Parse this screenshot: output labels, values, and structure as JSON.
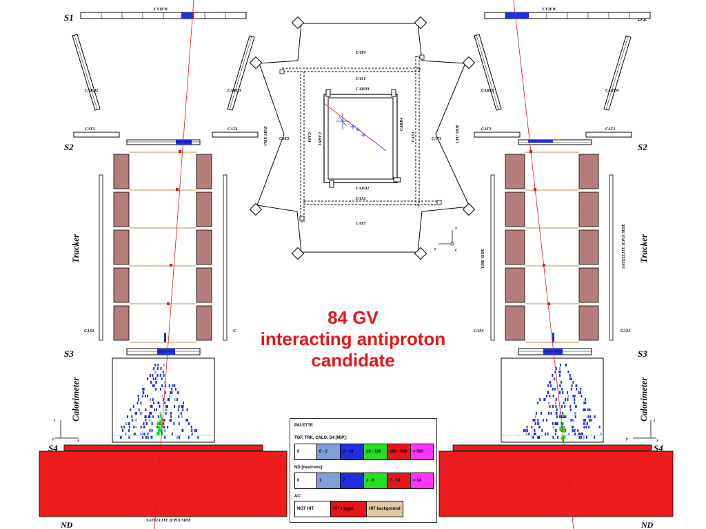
{
  "views": {
    "x_view_title": "X VIEW",
    "y_view_title": "Y VIEW"
  },
  "detector_labels": {
    "s1": "S1",
    "s2": "S2",
    "s3": "S3",
    "s4": "S4",
    "nd": "ND",
    "tracker": "Tracker",
    "calorimeter": "Calorimeter"
  },
  "left_view": {
    "card2": "CARD2",
    "card3": "CARD3",
    "cat3": "CAT3",
    "cat4": "CAT4",
    "cas2": "CAS2",
    "cas_c": "C",
    "satellite_bottom": "SATELLITE (CPU) SIDE",
    "axis_z": "z",
    "axis_y": "y",
    "axis_x": "x"
  },
  "right_view": {
    "card1": "CARD1",
    "card4": "CARD4",
    "cat2": "CAT2",
    "cat1": "CAT1",
    "cas4": "CAS4",
    "cas3": "CAS3",
    "vme_side": "VME SIDE",
    "satellite_side": "SATELLITE (CPU) SIDE",
    "axis_z": "z",
    "axis_y": "y",
    "axis_x": "x"
  },
  "top_view": {
    "cat4": "CAT4",
    "cas1": "CAS1",
    "card3": "CARD3",
    "cat2": "CAT2",
    "cat1": "CAT1",
    "cas4": "CAS4",
    "card1": "CARD1",
    "card4": "CARD4",
    "cas3": "CAS3",
    "card2": "CARD2",
    "cas2": "CAS2",
    "cat3": "CAT3",
    "vme_side": "VME SIDE",
    "cpu_side": "CPU SIDE",
    "axis_x": "x",
    "axis_y": "y",
    "axis_z": "z"
  },
  "caption": [
    "84 GV",
    "interacting antiproton",
    "candidate"
  ],
  "palette": {
    "title": "PALETTE",
    "mip_label": "TOF, TRK, CALO, S4 [MIP]:",
    "mip_bins": [
      {
        "text": "0",
        "color": "#ffffff"
      },
      {
        "text": "0 - 2",
        "color": "#7f9fd6"
      },
      {
        "text": "2 - 10",
        "color": "#1f2fe0"
      },
      {
        "text": "10 - 100",
        "color": "#22e022"
      },
      {
        "text": "100 - 500",
        "color": "#e8141b"
      },
      {
        "text": "> 500",
        "color": "#ff33ff"
      }
    ],
    "nd_label": "ND [neutrons]:",
    "nd_bins": [
      {
        "text": "0",
        "color": "#ffffff"
      },
      {
        "text": "1",
        "color": "#7f9fd6"
      },
      {
        "text": "2",
        "color": "#1f2fe0"
      },
      {
        "text": "3 - 6",
        "color": "#22e022"
      },
      {
        "text": "7 - 14",
        "color": "#e8141b"
      },
      {
        "text": "> 14",
        "color": "#ff33ff"
      }
    ],
    "ac_label": "AC:",
    "ac_bins": [
      {
        "text": "NOT HIT",
        "color": "#ffffff"
      },
      {
        "text": "HIT trigger",
        "color": "#e8141b"
      },
      {
        "text": "HIT background",
        "color": "#e0c9a6"
      }
    ]
  },
  "colors": {
    "track": "#e8141b",
    "tracker_pad": "#b57d7a",
    "scintillator_hit": "#1f2fe0",
    "neutron_detector": "#ee1c1c",
    "tracker_plane": "#e0c9a6"
  }
}
